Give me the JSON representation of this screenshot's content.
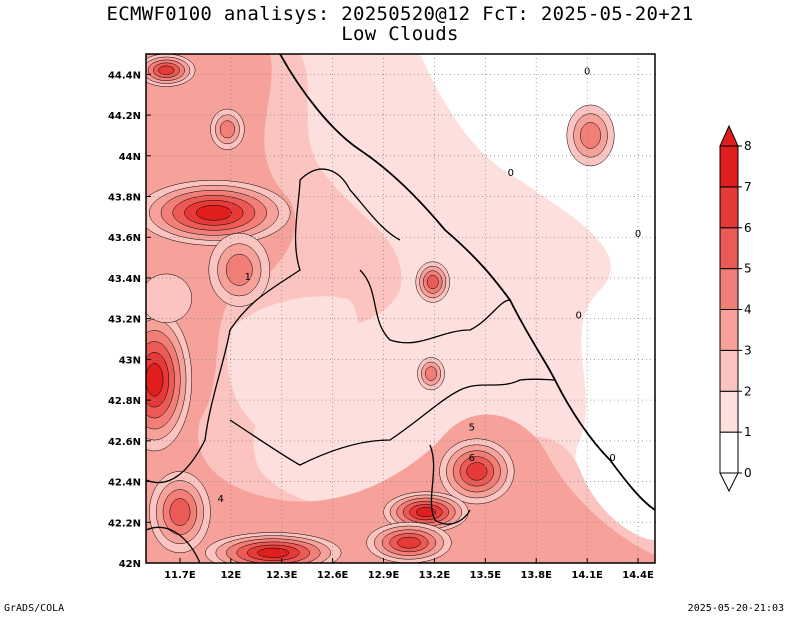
{
  "title": {
    "line1": "ECMWF0100 analisys: 20250520@12 FcT: 2025-05-20+21",
    "line2": "Low Clouds"
  },
  "footer": {
    "credit": "GrADS/COLA",
    "timestamp": "2025-05-20-21:03"
  },
  "chart_data": {
    "type": "heatmap",
    "title": "ECMWF0100 analisys: 20250520@12 FcT: 2025-05-20+21",
    "subtitle": "Low Clouds",
    "xlim": [
      11.5,
      14.5
    ],
    "ylim": [
      42.0,
      44.5
    ],
    "x_ticks": [
      11.7,
      12.0,
      12.3,
      12.6,
      12.9,
      13.2,
      13.5,
      13.8,
      14.1,
      14.4
    ],
    "x_tick_labels": [
      "11.7E",
      "12E",
      "12.3E",
      "12.6E",
      "12.9E",
      "13.2E",
      "13.5E",
      "13.8E",
      "14.1E",
      "14.4E"
    ],
    "y_ticks": [
      42.0,
      42.2,
      42.4,
      42.6,
      42.8,
      43.0,
      43.2,
      43.4,
      43.6,
      43.8,
      44.0,
      44.2,
      44.4
    ],
    "y_tick_labels": [
      "42N",
      "42.2N",
      "42.4N",
      "42.6N",
      "42.8N",
      "43N",
      "43.2N",
      "43.4N",
      "43.6N",
      "43.8N",
      "44N",
      "44.2N",
      "44.4N"
    ],
    "grid": true,
    "colorbar": {
      "levels": [
        0,
        1,
        2,
        3,
        4,
        5,
        6,
        7,
        8
      ],
      "labels": [
        "0",
        "1",
        "2",
        "3",
        "4",
        "5",
        "6",
        "7",
        "8"
      ],
      "colors": [
        "#ffffff",
        "#fde0dd",
        "#fbc4c0",
        "#f7a19b",
        "#f27e78",
        "#ec5a56",
        "#e53a37",
        "#e01e1e"
      ],
      "placement": "right"
    },
    "contour_labels": [
      {
        "lon": 14.1,
        "lat": 44.4,
        "text": "0"
      },
      {
        "lon": 13.65,
        "lat": 43.9,
        "text": "0"
      },
      {
        "lon": 14.4,
        "lat": 43.6,
        "text": "0"
      },
      {
        "lon": 14.05,
        "lat": 43.2,
        "text": "0"
      },
      {
        "lon": 14.25,
        "lat": 42.5,
        "text": "0"
      },
      {
        "lon": 12.1,
        "lat": 43.39,
        "text": "1"
      },
      {
        "lon": 13.42,
        "lat": 42.65,
        "text": "5"
      },
      {
        "lon": 13.42,
        "lat": 42.5,
        "text": "6"
      },
      {
        "lon": 11.94,
        "lat": 42.3,
        "text": "4"
      }
    ],
    "blobs": [
      {
        "lon": 11.55,
        "lat": 42.9,
        "level": 7,
        "rx": 0.22,
        "ry": 0.35
      },
      {
        "lon": 11.62,
        "lat": 43.3,
        "level": 2,
        "rx": 0.15,
        "ry": 0.12
      },
      {
        "lon": 11.9,
        "lat": 43.72,
        "level": 7,
        "rx": 0.45,
        "ry": 0.16
      },
      {
        "lon": 12.05,
        "lat": 43.44,
        "level": 4,
        "rx": 0.18,
        "ry": 0.18
      },
      {
        "lon": 11.98,
        "lat": 44.13,
        "level": 4,
        "rx": 0.1,
        "ry": 0.1
      },
      {
        "lon": 11.62,
        "lat": 44.42,
        "level": 6,
        "rx": 0.17,
        "ry": 0.08
      },
      {
        "lon": 13.19,
        "lat": 43.38,
        "level": 5,
        "rx": 0.1,
        "ry": 0.1
      },
      {
        "lon": 13.18,
        "lat": 42.93,
        "level": 4,
        "rx": 0.08,
        "ry": 0.08
      },
      {
        "lon": 14.12,
        "lat": 44.1,
        "level": 4,
        "rx": 0.14,
        "ry": 0.15
      },
      {
        "lon": 13.45,
        "lat": 42.45,
        "level": 6,
        "rx": 0.22,
        "ry": 0.16
      },
      {
        "lon": 13.15,
        "lat": 42.25,
        "level": 7,
        "rx": 0.25,
        "ry": 0.1
      },
      {
        "lon": 12.25,
        "lat": 42.05,
        "level": 7,
        "rx": 0.4,
        "ry": 0.1
      },
      {
        "lon": 11.7,
        "lat": 42.25,
        "level": 5,
        "rx": 0.18,
        "ry": 0.2
      },
      {
        "lon": 13.05,
        "lat": 42.1,
        "level": 6,
        "rx": 0.25,
        "ry": 0.1
      }
    ]
  }
}
